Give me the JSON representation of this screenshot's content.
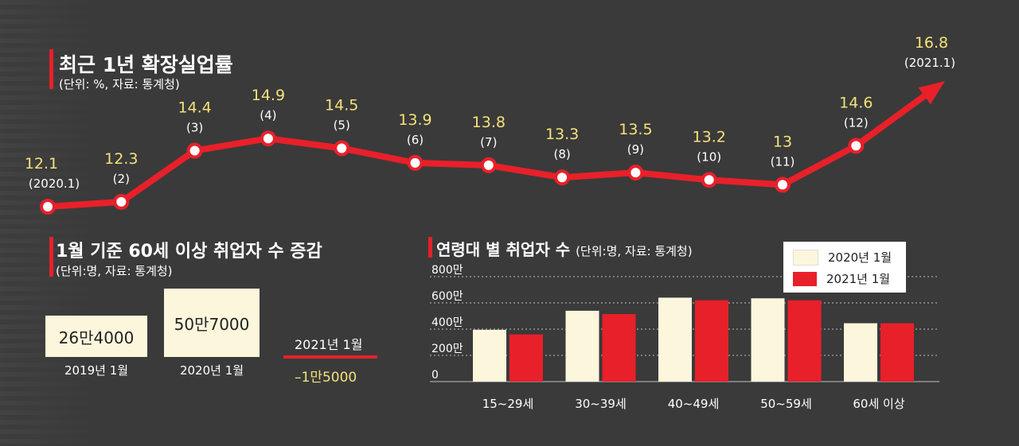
{
  "colors": {
    "background": "#3a3a3a",
    "accent_red": "#e8202a",
    "value_yellow": "#f4e27a",
    "cream": "#fbf6dc"
  },
  "top_chart": {
    "title": "최근 1년 확장실업률",
    "subtitle": "(단위: %, 자료: 통계청)"
  },
  "elderly": {
    "title": "1월 기준 60세 이상 취업자 수 증감",
    "subtitle": "(단위:명, 자료: 통계청)",
    "boxes": [
      {
        "value": "26만4000",
        "caption": "2019년 1월"
      },
      {
        "value": "50만7000",
        "caption": "2020년 1월"
      }
    ],
    "change_label": "2021년 1월",
    "change_value": "–1만5000"
  },
  "age_chart": {
    "title": "연령대 별 취업자 수",
    "subtitle": "(단위:명, 자료: 통계청)"
  },
  "chart_data": [
    {
      "type": "line",
      "title": "최근 1년 확장실업률",
      "unit": "%",
      "x": [
        "(2020.1)",
        "(2)",
        "(3)",
        "(4)",
        "(5)",
        "(6)",
        "(7)",
        "(8)",
        "(9)",
        "(10)",
        "(11)",
        "(12)",
        "(2021.1)"
      ],
      "values": [
        12.1,
        12.3,
        14.4,
        14.9,
        14.5,
        13.9,
        13.8,
        13.3,
        13.5,
        13.2,
        13,
        14.6,
        16.8
      ],
      "value_labels": [
        "12.1",
        "12.3",
        "14.4",
        "14.9",
        "14.5",
        "13.9",
        "13.8",
        "13.3",
        "13.5",
        "13.2",
        "13",
        "14.6",
        "16.8"
      ],
      "ylim": [
        11,
        17
      ],
      "grid": false
    },
    {
      "type": "bar",
      "title": "연령대 별 취업자 수",
      "unit": "명",
      "categories": [
        "15~29세",
        "30~39세",
        "40~49세",
        "50~59세",
        "60세 이상"
      ],
      "series": [
        {
          "name": "2020년 1월",
          "color": "#fbf6dc",
          "values": [
            395,
            540,
            640,
            635,
            445
          ]
        },
        {
          "name": "2021년 1월",
          "color": "#e8202a",
          "values": [
            360,
            515,
            620,
            620,
            445
          ]
        }
      ],
      "yticks": [
        "0",
        "200만",
        "400만",
        "600만",
        "800만"
      ],
      "ytick_values": [
        0,
        200,
        400,
        600,
        800
      ],
      "ylim": [
        0,
        800
      ],
      "legend_position": "top-right"
    }
  ]
}
